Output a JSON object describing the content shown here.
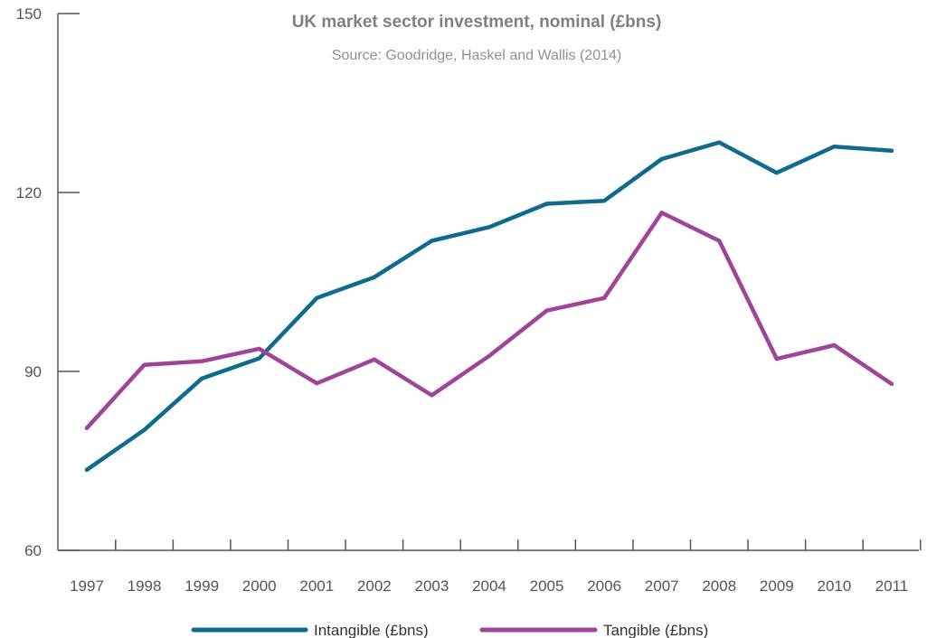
{
  "chart_data": {
    "type": "line",
    "title": "UK market sector investment, nominal (£bns)",
    "subtitle": "Source: Goodridge, Haskel and Wallis (2014)",
    "xlabel": "",
    "ylabel": "",
    "categories": [
      "1997",
      "1998",
      "1999",
      "2000",
      "2001",
      "2002",
      "2003",
      "2004",
      "2005",
      "2006",
      "2007",
      "2008",
      "2009",
      "2010",
      "2011"
    ],
    "ylim": [
      60,
      150
    ],
    "yticks": [
      60,
      90,
      120,
      150
    ],
    "grid": false,
    "legend_position": "bottom",
    "series": [
      {
        "name": "Intangible (£bns)",
        "color": "#0e6a8f",
        "values": [
          73.5,
          80.2,
          88.8,
          92.2,
          102.3,
          105.8,
          111.9,
          114.2,
          118.1,
          118.6,
          125.6,
          128.4,
          123.3,
          127.7,
          127.0
        ]
      },
      {
        "name": "Tangible (£bns)",
        "color": "#a0449a",
        "values": [
          80.5,
          91.1,
          91.7,
          93.8,
          88.0,
          92.0,
          86.0,
          92.6,
          100.2,
          102.3,
          116.6,
          111.9,
          92.1,
          94.4,
          87.9
        ]
      }
    ]
  }
}
